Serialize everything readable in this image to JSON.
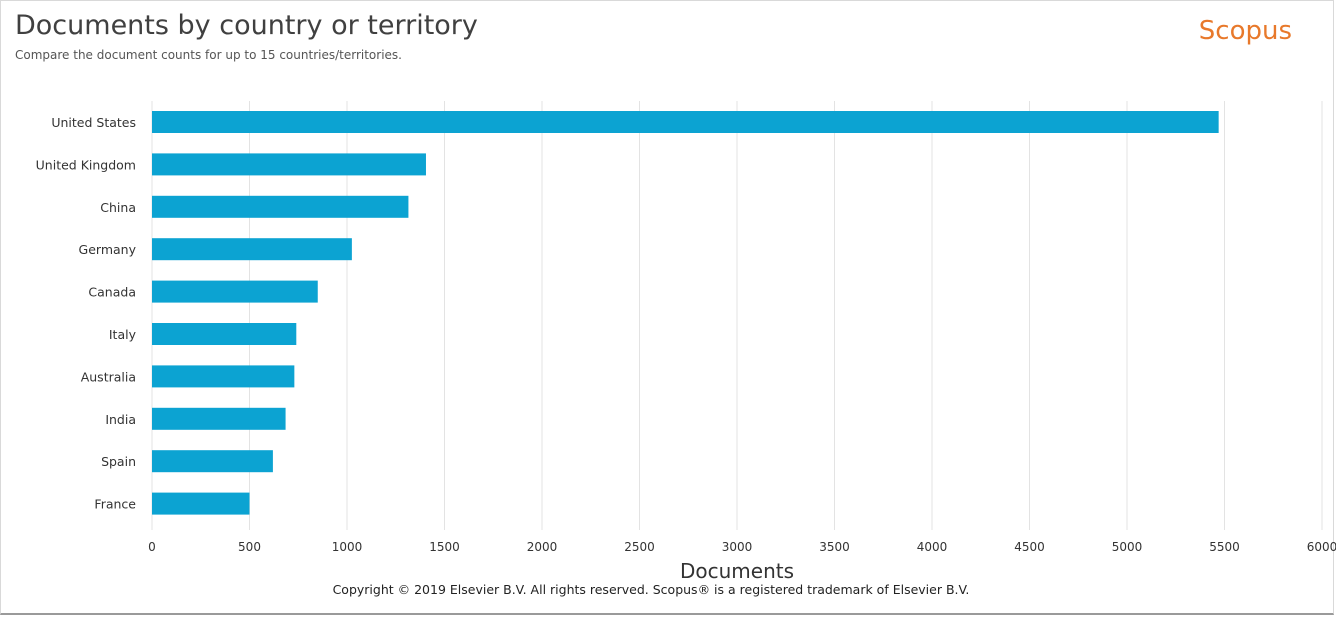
{
  "header": {
    "title": "Documents by country or territory",
    "subtitle": "Compare the document counts for up to 15 countries/territories.",
    "brand": "Scopus"
  },
  "footer": {
    "copyright": "Copyright © 2019 Elsevier B.V. All rights reserved. Scopus® is a registered trademark of Elsevier B.V."
  },
  "colors": {
    "bar": "#0ca3d2",
    "grid": "#e3e3e3",
    "brand": "#e8792b"
  },
  "chart_data": {
    "type": "bar",
    "orientation": "horizontal",
    "categories": [
      "United States",
      "United Kingdom",
      "China",
      "Germany",
      "Canada",
      "Italy",
      "Australia",
      "India",
      "Spain",
      "France"
    ],
    "values": [
      5470,
      1405,
      1315,
      1025,
      850,
      740,
      730,
      685,
      620,
      500
    ],
    "xlabel": "Documents",
    "xlim": [
      0,
      6000
    ],
    "xticks": [
      0,
      500,
      1000,
      1500,
      2000,
      2500,
      3000,
      3500,
      4000,
      4500,
      5000,
      5500,
      6000
    ],
    "grid": "vertical"
  }
}
